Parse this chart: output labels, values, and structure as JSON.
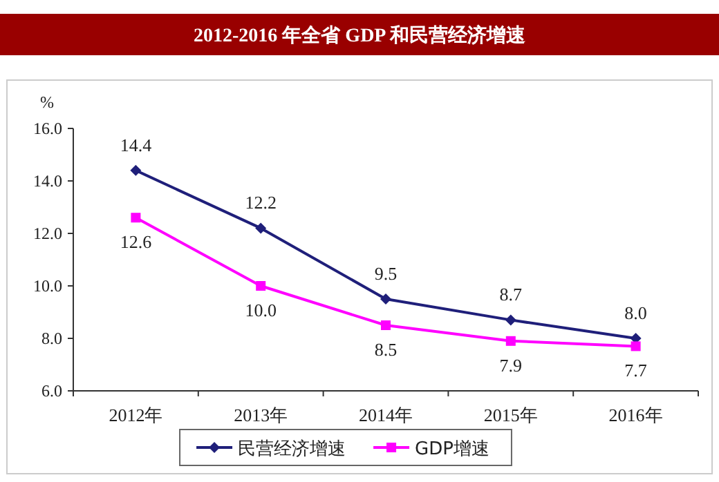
{
  "chart_data": {
    "type": "line",
    "title": "2012-2016 年全省 GDP 和民营经济增速",
    "ylabel": "%",
    "categories": [
      "2012年",
      "2013年",
      "2014年",
      "2015年",
      "2016年"
    ],
    "series": [
      {
        "name": "民营经济增速",
        "color": "#1f1f7a",
        "marker": "diamond",
        "values": [
          14.4,
          12.2,
          9.5,
          8.7,
          8.0
        ],
        "value_labels": [
          "14.4",
          "12.2",
          "9.5",
          "8.7",
          "8.0"
        ]
      },
      {
        "name": "GDP增速",
        "color": "#ff00ff",
        "marker": "square",
        "values": [
          12.6,
          10.0,
          8.5,
          7.9,
          7.7
        ],
        "value_labels": [
          "12.6",
          "10.0",
          "8.5",
          "7.9",
          "7.7"
        ]
      }
    ],
    "ylim": [
      6,
      16
    ],
    "yticks": [
      {
        "value": 6,
        "label": "6.0"
      },
      {
        "value": 8,
        "label": "8.0"
      },
      {
        "value": 10,
        "label": "10.0"
      },
      {
        "value": 12,
        "label": "12.0"
      },
      {
        "value": 14,
        "label": "14.0"
      },
      {
        "value": 16,
        "label": "16.0"
      }
    ],
    "legend": "bottom"
  }
}
